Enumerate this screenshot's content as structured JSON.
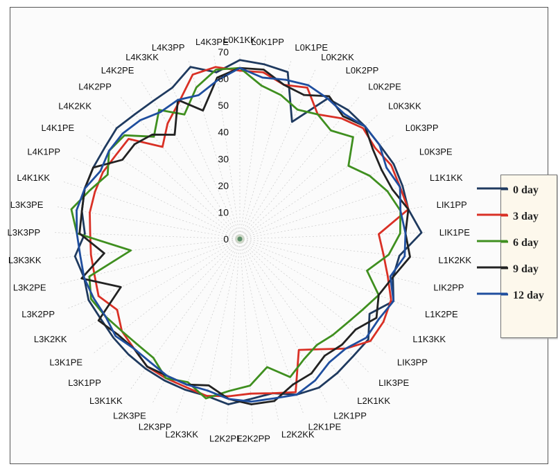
{
  "chart_data": {
    "type": "radar",
    "title": "",
    "categories": [
      "L0K1KK",
      "L0K1PP",
      "L0K1PE",
      "L0K2KK",
      "L0K2PP",
      "L0K2PE",
      "L0K3KK",
      "L0K3PP",
      "L0K3PE",
      "L1K1KK",
      "LIK1PP",
      "LIK1PE",
      "L1K2KK",
      "LIK2PP",
      "L1K2PE",
      "L1K3KK",
      "LIK3PP",
      "LIK3PE",
      "L2K1KK",
      "L2K1PP",
      "L2K1PE",
      "L2K2KK",
      "L2K2PP",
      "L2K2PE",
      "L2K3KK",
      "L2K3PP",
      "L2K3PE",
      "L3K1KK",
      "L3K1PP",
      "L3K1PE",
      "L3K2KK",
      "L3K2PP",
      "L3K2PE",
      "L3K3KK",
      "L3K3PP",
      "L3K3PE",
      "L4K1KK",
      "L4K1PP",
      "L4K1PE",
      "L4K2KK",
      "L4K2PP",
      "L4K2PE",
      "L4K3KK",
      "L4K3PP",
      "L4K3PE"
    ],
    "rlim": [
      0,
      70
    ],
    "r_ticks": [
      "0",
      "10",
      "20",
      "30",
      "40",
      "50",
      "60",
      "70"
    ],
    "grid": true,
    "legend_position": "right",
    "series": [
      {
        "name": "0 day",
        "color": "#1f3a5f",
        "values": [
          67,
          66,
          65,
          48,
          62,
          63,
          63,
          63,
          64,
          64,
          64,
          68,
          60,
          59,
          62,
          56,
          61,
          61,
          62,
          63,
          62,
          59,
          60,
          62,
          60,
          60,
          60,
          60,
          60,
          60,
          60,
          61,
          60,
          62,
          58,
          60,
          61,
          61,
          61,
          62,
          61,
          61,
          62,
          67,
          63
        ]
      },
      {
        "name": "3 day",
        "color": "#d93025",
        "values": [
          63,
          63,
          60,
          62,
          55,
          59,
          62,
          61,
          63,
          63,
          64,
          52,
          54,
          57,
          61,
          62,
          62,
          57,
          51,
          47,
          61,
          59,
          58,
          59,
          60,
          59,
          59,
          59,
          57,
          56,
          53,
          57,
          56,
          56,
          56,
          57,
          57,
          57,
          56,
          56,
          45,
          51,
          56,
          64,
          65
        ]
      },
      {
        "name": "6 day",
        "color": "#3f8f1f",
        "values": [
          64,
          58,
          56,
          53,
          55,
          53,
          57,
          49,
          54,
          58,
          61,
          60,
          56,
          49,
          56,
          53,
          51,
          50,
          49,
          51,
          55,
          49,
          55,
          57,
          61,
          57,
          59,
          55,
          55,
          56,
          58,
          60,
          58,
          41,
          61,
          64,
          59,
          55,
          59,
          58,
          50,
          57,
          51,
          59,
          64
        ]
      },
      {
        "name": "9 day",
        "color": "#222222",
        "values": [
          64,
          64,
          60,
          59,
          63,
          60,
          63,
          60,
          59,
          60,
          64,
          62,
          64,
          59,
          56,
          59,
          55,
          55,
          54,
          57,
          58,
          62,
          62,
          60,
          56,
          58,
          58,
          59,
          57,
          58,
          61,
          48,
          61,
          51,
          60,
          60,
          61,
          61,
          53,
          53,
          51,
          46,
          57,
          50,
          61
        ]
      },
      {
        "name": "12 day",
        "color": "#1f4e9e",
        "values": [
          64,
          61,
          62,
          63,
          62,
          61,
          63,
          63,
          61,
          63,
          61,
          62,
          62,
          58,
          62,
          60,
          60,
          57,
          57,
          60,
          62,
          61,
          61,
          60,
          58,
          58,
          58,
          57,
          57,
          59,
          58,
          59,
          60,
          60,
          61,
          62,
          61,
          58,
          59,
          59,
          58,
          56,
          57,
          56,
          60
        ]
      }
    ]
  }
}
